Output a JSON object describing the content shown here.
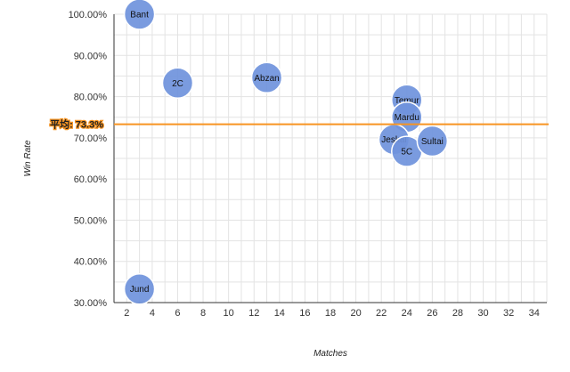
{
  "chart_data": {
    "type": "scatter",
    "xlabel": "Matches",
    "ylabel": "Win Rate",
    "xlim": [
      1,
      35
    ],
    "ylim": [
      30,
      100
    ],
    "x_ticks": [
      "2",
      "4",
      "6",
      "8",
      "10",
      "12",
      "14",
      "16",
      "18",
      "20",
      "22",
      "24",
      "26",
      "28",
      "30",
      "32",
      "34"
    ],
    "y_ticks": [
      "100.00%",
      "90.00%",
      "80.00%",
      "70.00%",
      "60.00%",
      "50.00%",
      "40.00%",
      "30.00%"
    ],
    "grid": true,
    "colors": {
      "bubble_fill": "#6f93dc",
      "bubble_stroke": "#ffffff",
      "average_line": "#f79422",
      "grid": "#e3e3e3"
    },
    "points": [
      {
        "label": "Bant",
        "x": 3,
        "y": 100.0
      },
      {
        "label": "2C",
        "x": 6,
        "y": 83.3
      },
      {
        "label": "Abzan",
        "x": 13,
        "y": 84.6
      },
      {
        "label": "Temur",
        "x": 24,
        "y": 79.2
      },
      {
        "label": "Mardu",
        "x": 24,
        "y": 75.0
      },
      {
        "label": "Jeskai",
        "x": 23,
        "y": 69.6
      },
      {
        "label": "5C",
        "x": 24,
        "y": 66.7
      },
      {
        "label": "Sultai",
        "x": 26,
        "y": 69.2
      },
      {
        "label": "Jund",
        "x": 3,
        "y": 33.3
      }
    ],
    "average": {
      "label": "平均: 73.3%",
      "value": 73.3
    }
  }
}
